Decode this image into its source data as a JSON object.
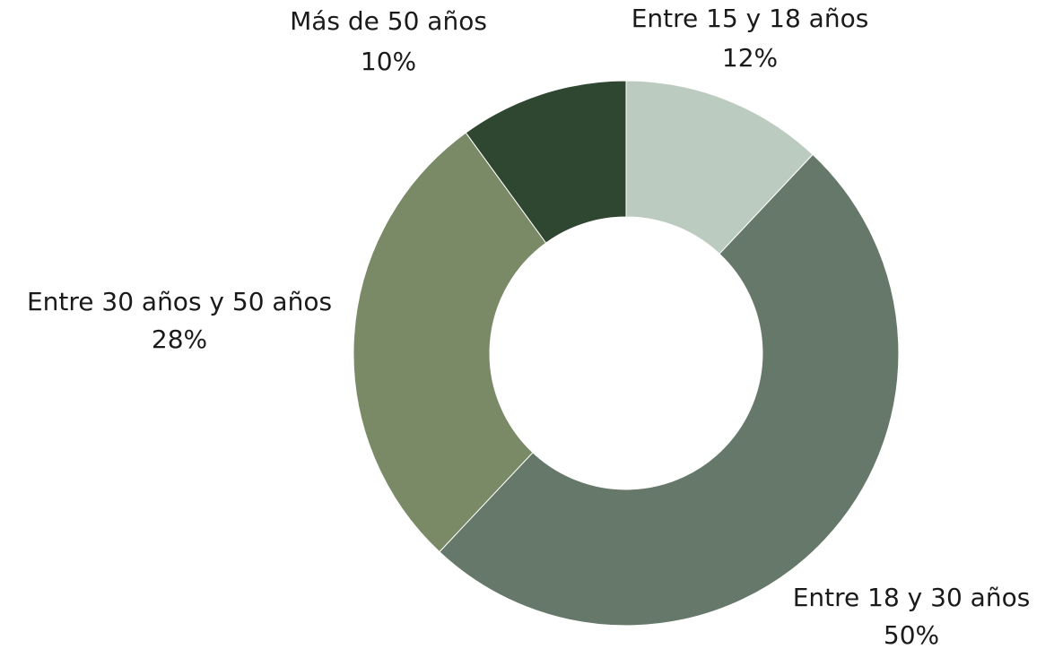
{
  "chart_data": {
    "type": "donut",
    "categories": [
      "Entre 15 y 18 años",
      "Entre 18 y 30 años",
      "Entre 30 años y 50 años",
      "Más de 50 años"
    ],
    "values": [
      12,
      50,
      28,
      10
    ],
    "value_labels": [
      "12%",
      "50%",
      "28%",
      "10%"
    ],
    "colors": [
      "#bccbc0",
      "#66786a",
      "#7a8a66",
      "#2f4630"
    ]
  }
}
